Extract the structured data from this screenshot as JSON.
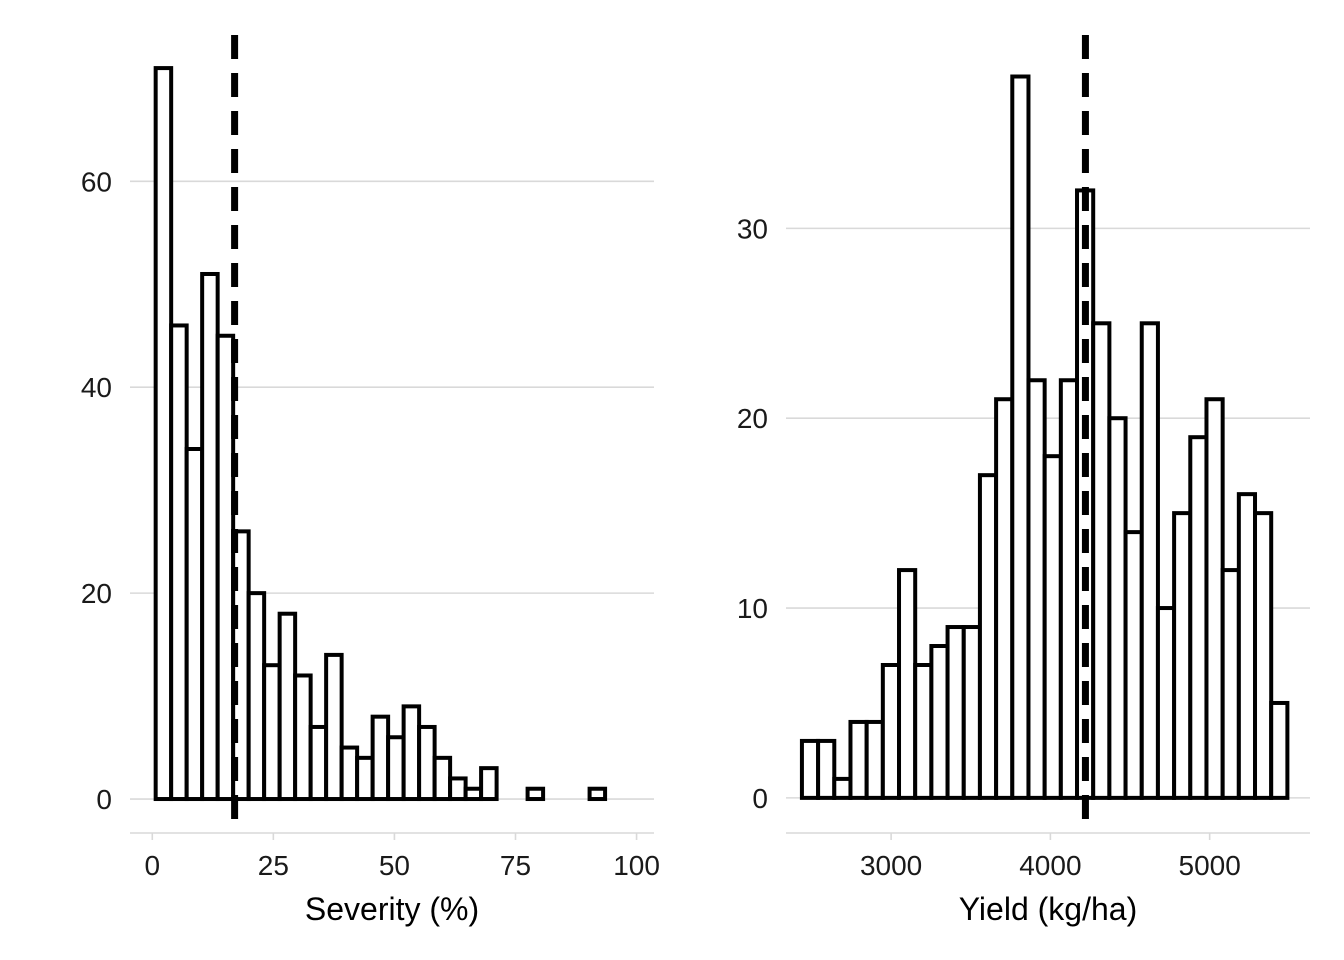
{
  "chart_data": [
    {
      "type": "histogram",
      "xlabel": "Severity (%)",
      "ylabel": "",
      "xlim": [
        -4.6,
        103.6
      ],
      "ylim": [
        -3.3,
        74.7
      ],
      "x_ticks": [
        0,
        25,
        50,
        75,
        100
      ],
      "y_ticks": [
        0,
        20,
        40,
        60
      ],
      "grid": "horizontal",
      "bin_start": 0.7,
      "bin_width": 3.2,
      "counts": [
        71,
        46,
        34,
        51,
        45,
        26,
        20,
        13,
        18,
        12,
        7,
        14,
        5,
        4,
        8,
        6,
        9,
        7,
        4,
        2,
        1,
        3,
        0,
        0,
        1,
        0,
        0,
        0,
        1,
        0,
        0
      ],
      "reference_line": 17
    },
    {
      "type": "histogram",
      "xlabel": "Yield (kg/ha)",
      "ylabel": "",
      "xlim": [
        2340,
        5630
      ],
      "ylim": [
        -1.85,
        40.45
      ],
      "x_ticks": [
        3000,
        4000,
        5000
      ],
      "y_ticks": [
        0,
        10,
        20,
        30
      ],
      "grid": "horizontal",
      "bin_start": 2440,
      "bin_width": 101.6,
      "counts": [
        3,
        3,
        1,
        4,
        4,
        7,
        12,
        7,
        8,
        9,
        9,
        17,
        21,
        38,
        22,
        18,
        22,
        32,
        25,
        20,
        14,
        25,
        10,
        15,
        19,
        21,
        12,
        16,
        15,
        5
      ],
      "reference_line": 4220
    }
  ]
}
